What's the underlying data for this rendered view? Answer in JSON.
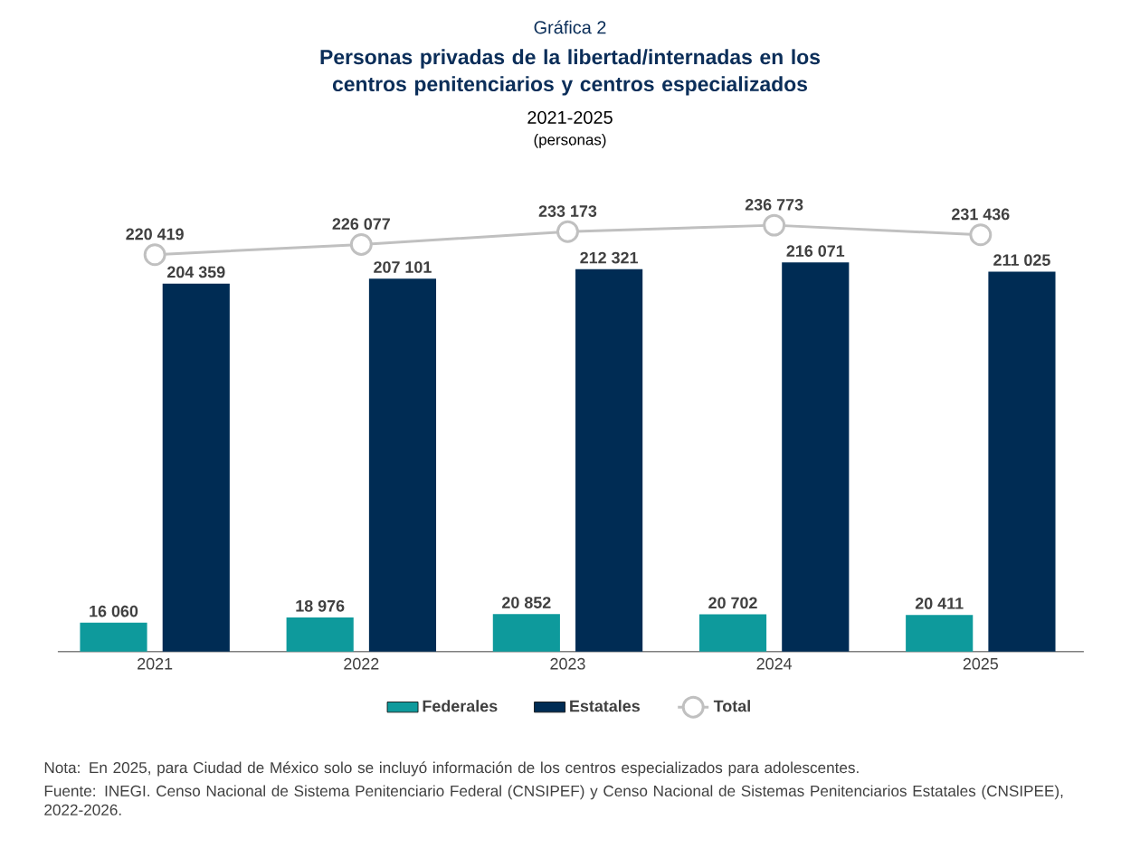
{
  "chart_data": {
    "type": "bar",
    "title": "Personas privadas de la libertad/internadas en los centros penitenciarios y centros especializados",
    "subtitle": "2021-2025",
    "annotations": [
      "Gráfica 2",
      "(personas)",
      "Nota:    En 2025, para Ciudad de México solo se incluyó información de los centros especializados para adolescentes.",
      "Fuente: INEGI. Censo Nacional de Sistema Penitenciario Federal (CNSIPEF) y Censo Nacional de Sistemas Penitenciarios Estatales (CNSIPEE), 2022-2026."
    ],
    "categories": [
      "2021",
      "2022",
      "2023",
      "2024",
      "2025"
    ],
    "series": [
      {
        "name": "Federales",
        "color": "#0e9a9c",
        "values": [
          16060,
          18976,
          20852,
          20702,
          20411
        ],
        "value_labels": [
          "16 060",
          "18 976",
          "20 852",
          "20 702",
          "20 411"
        ]
      },
      {
        "name": "Estatales",
        "color": "#002c54",
        "values": [
          204359,
          207101,
          212321,
          216071,
          211025
        ],
        "value_labels": [
          "204 359",
          "207 101",
          "212 321",
          "216 071",
          "211 025"
        ]
      },
      {
        "name": "Total",
        "type": "line",
        "color": "#c0c0c0",
        "marker": "circle",
        "values": [
          220419,
          226077,
          233173,
          236773,
          231436
        ],
        "value_labels": [
          "220 419",
          "226 077",
          "233 173",
          "236 773",
          "231 436"
        ]
      }
    ],
    "tick_labels": "x",
    "grid": false,
    "legend": "bottom"
  }
}
